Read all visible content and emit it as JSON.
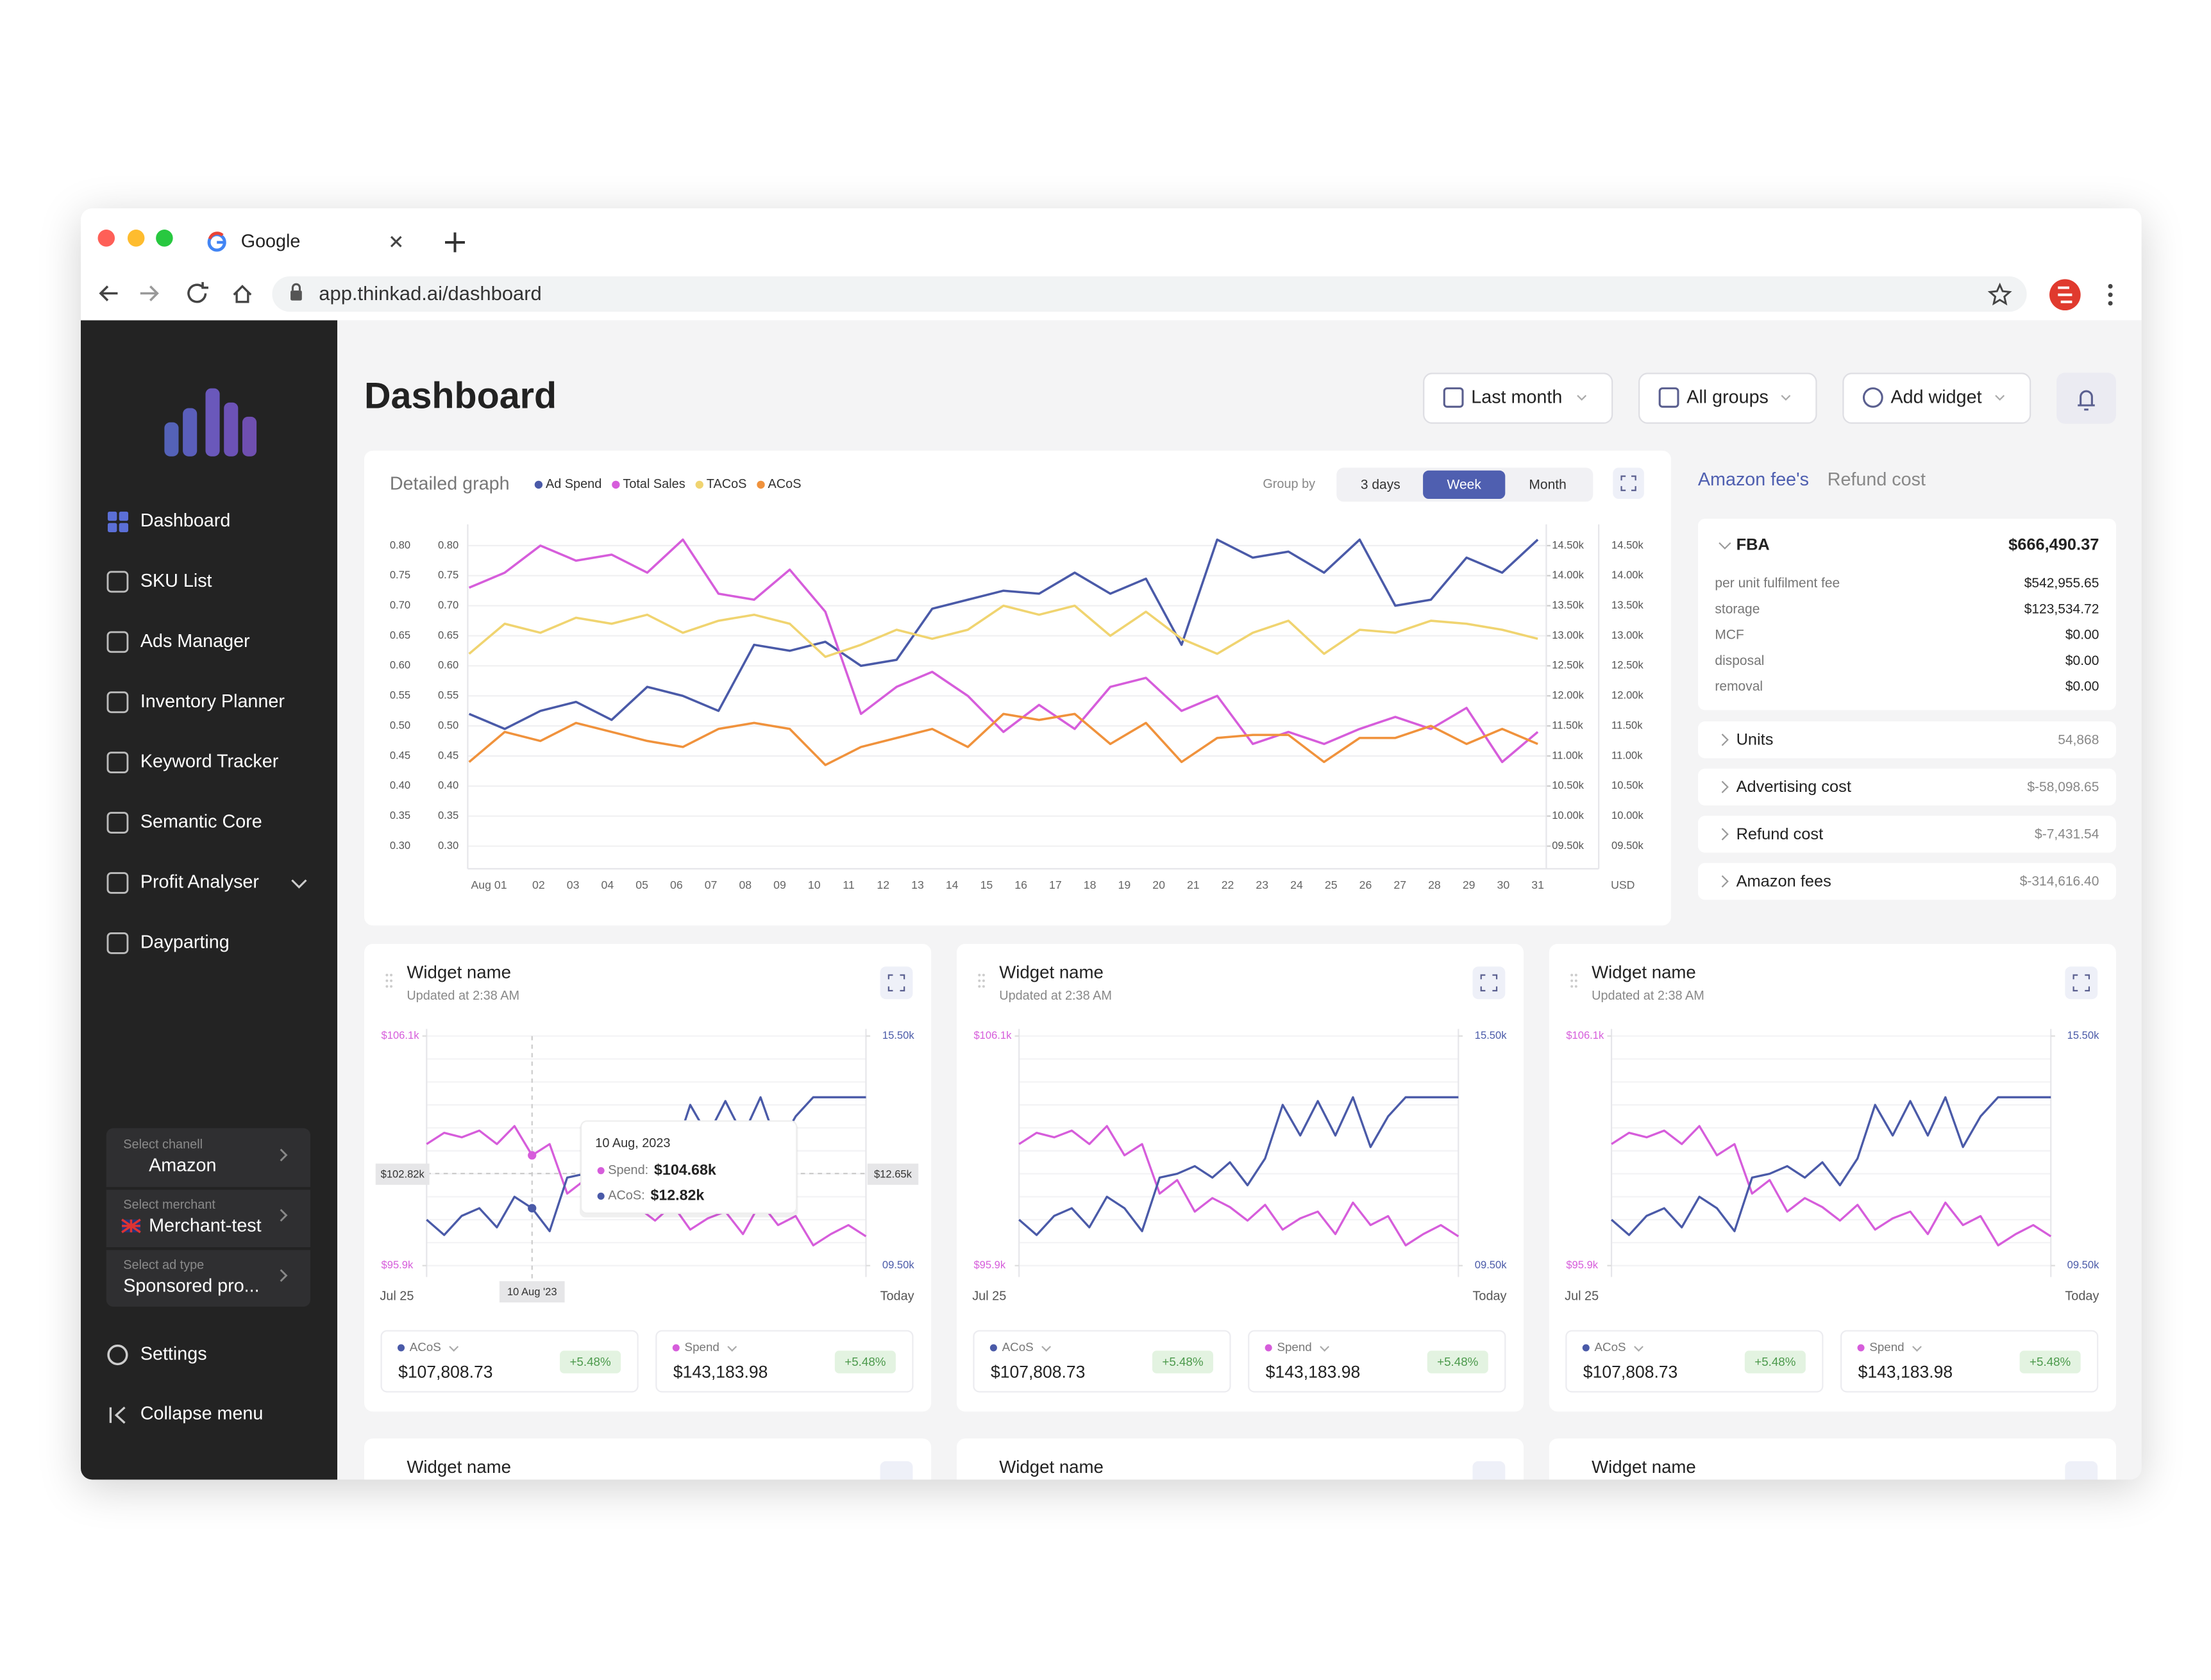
{
  "browser": {
    "tab_title": "Google",
    "url": "app.thinkad.ai/dashboard"
  },
  "sidebar": {
    "nav": [
      "Dashboard",
      "SKU List",
      "Ads Manager",
      "Inventory Planner",
      "Keyword Tracker",
      "Semantic Core",
      "Profit Analyser",
      "Dayparting"
    ],
    "selectors": [
      {
        "caption": "Select chanell",
        "value": "Amazon"
      },
      {
        "caption": "Select merchant",
        "value": "Merchant-test"
      },
      {
        "caption": "Select ad type",
        "value": "Sponsored pro..."
      }
    ],
    "settings": "Settings",
    "collapse": "Collapse menu"
  },
  "header": {
    "title": "Dashboard",
    "buttons": [
      "Last month",
      "All groups",
      "Add widget"
    ]
  },
  "main_chart": {
    "type": "line",
    "title": "Detailed graph",
    "group_by_label": "Group by",
    "group_by_options": [
      "3 days",
      "Week",
      "Month"
    ],
    "group_by_selected": "Week",
    "categories": [
      "Aug 01",
      "02",
      "03",
      "04",
      "05",
      "06",
      "07",
      "08",
      "09",
      "10",
      "11",
      "12",
      "13",
      "14",
      "15",
      "16",
      "17",
      "18",
      "19",
      "20",
      "21",
      "22",
      "23",
      "24",
      "25",
      "26",
      "27",
      "28",
      "29",
      "30",
      "31"
    ],
    "unit_label": "USD",
    "series": [
      {
        "name": "Ad Spend",
        "color": "#4a5aa8",
        "axis": "y2",
        "values": [
          11700,
          11450,
          11750,
          11900,
          11600,
          12150,
          12000,
          11750,
          12850,
          12750,
          12900,
          12500,
          12600,
          13450,
          13600,
          13750,
          13700,
          14050,
          13700,
          13950,
          12850,
          14600,
          14300,
          14400,
          14050,
          14600,
          13500,
          13600,
          14300,
          14050,
          14600
        ]
      },
      {
        "name": "Total Sales",
        "color": "#d65ddb",
        "axis": "y2",
        "values": [
          13800,
          14050,
          14500,
          14250,
          14350,
          14050,
          14600,
          13700,
          13600,
          14100,
          13400,
          11700,
          12150,
          12400,
          12000,
          11400,
          11850,
          11450,
          12150,
          12300,
          11750,
          12000,
          11200,
          11400,
          11200,
          11450,
          11650,
          11450,
          11800,
          10900,
          11400
        ]
      },
      {
        "name": "TACoS",
        "color": "#f0d470",
        "values": [
          0.62,
          0.67,
          0.655,
          0.68,
          0.67,
          0.685,
          0.655,
          0.675,
          0.685,
          0.67,
          0.615,
          0.635,
          0.66,
          0.645,
          0.66,
          0.7,
          0.685,
          0.7,
          0.65,
          0.69,
          0.645,
          0.62,
          0.655,
          0.675,
          0.62,
          0.66,
          0.655,
          0.675,
          0.67,
          0.66,
          0.645
        ]
      },
      {
        "name": "ACoS",
        "color": "#f0923c",
        "values": [
          0.44,
          0.49,
          0.475,
          0.505,
          0.49,
          0.475,
          0.465,
          0.495,
          0.505,
          0.495,
          0.435,
          0.465,
          0.48,
          0.495,
          0.465,
          0.52,
          0.51,
          0.52,
          0.47,
          0.505,
          0.44,
          0.48,
          0.485,
          0.485,
          0.44,
          0.48,
          0.48,
          0.5,
          0.47,
          0.495,
          0.47
        ]
      }
    ],
    "ylim": [
      0.28,
      0.82
    ],
    "yticks": [
      {
        "value": 0.3,
        "label": "0.30"
      },
      {
        "value": 0.35,
        "label": "0.35"
      },
      {
        "value": 0.4,
        "label": "0.40"
      },
      {
        "value": 0.45,
        "label": "0.45"
      },
      {
        "value": 0.5,
        "label": "0.50"
      },
      {
        "value": 0.55,
        "label": "0.55"
      },
      {
        "value": 0.6,
        "label": "0.60"
      },
      {
        "value": 0.65,
        "label": "0.65"
      },
      {
        "value": 0.7,
        "label": "0.70"
      },
      {
        "value": 0.75,
        "label": "0.75"
      },
      {
        "value": 0.8,
        "label": "0.80"
      }
    ],
    "y2lim": [
      9300,
      14700
    ],
    "y2ticks": [
      {
        "value": 9500,
        "label": "09.50k"
      },
      {
        "value": 10000,
        "label": "10.00k"
      },
      {
        "value": 10500,
        "label": "10.50k"
      },
      {
        "value": 11000,
        "label": "11.00k"
      },
      {
        "value": 11500,
        "label": "11.50k"
      },
      {
        "value": 12000,
        "label": "12.00k"
      },
      {
        "value": 12500,
        "label": "12.50k"
      },
      {
        "value": 13000,
        "label": "13.00k"
      },
      {
        "value": 13500,
        "label": "13.50k"
      },
      {
        "value": 14000,
        "label": "14.00k"
      },
      {
        "value": 14500,
        "label": "14.50k"
      }
    ],
    "grid": true
  },
  "fees_panel": {
    "tabs": [
      "Amazon fee's",
      "Refund cost"
    ],
    "selected": "Amazon fee's",
    "fba": {
      "title": "FBA",
      "total": "$666,490.37",
      "rows": [
        {
          "label": "per unit fulfilment fee",
          "value": "$542,955.65"
        },
        {
          "label": "storage",
          "value": "$123,534.72"
        },
        {
          "label": "MCF",
          "value": "$0.00"
        },
        {
          "label": "disposal",
          "value": "$0.00"
        },
        {
          "label": "removal",
          "value": "$0.00"
        }
      ]
    },
    "sections": [
      {
        "label": "Units",
        "value": "54,868"
      },
      {
        "label": "Advertising cost",
        "value": "$-58,098.65"
      },
      {
        "label": "Refund cost",
        "value": "$-7,431.54"
      },
      {
        "label": "Amazon fees",
        "value": "$-314,616.40"
      }
    ]
  },
  "widgets": [
    {
      "title": "Widget name",
      "updated": "Updated at 2:38 AM",
      "chart": {
        "type": "line",
        "x_start": "Jul 25",
        "x_end": "Today",
        "series": [
          {
            "color": "#d65ddb",
            "values": [
              101300,
              101800,
              101600,
              101900,
              101300,
              102100,
              100800,
              101300,
              99100,
              99700,
              98300,
              98900,
              98500,
              97900,
              98600,
              97500,
              98000,
              98300,
              97300,
              98700,
              97700,
              98100,
              96800,
              97300,
              97700,
              97200
            ]
          },
          {
            "color": "#4a5aa8",
            "axis": "y2",
            "values": [
              10700,
              10300,
              10800,
              11000,
              10500,
              11300,
              11000,
              10400,
              11800,
              11900,
              12100,
              11800,
              12200,
              11600,
              12300,
              13700,
              12900,
              13800,
              12900,
              13900,
              12600,
              13400,
              13900,
              13900,
              13900,
              13900
            ]
          }
        ],
        "ylim": [
          95900,
          106100
        ],
        "yticks": [
          {
            "value": 95900,
            "label": "$95.9k"
          },
          {
            "value": 106100,
            "label": "$106.1k"
          }
        ],
        "y2lim": [
          9500,
          15500
        ],
        "y2ticks": [
          {
            "value": 9500,
            "label": "09.50k"
          },
          {
            "value": 15500,
            "label": "15.50k"
          }
        ]
      },
      "tooltip": {
        "date": "10 Aug, 2023",
        "rows": [
          {
            "label": "Spend:",
            "value": "$104.68k"
          },
          {
            "label": "ACoS:",
            "value": "$12.82k"
          }
        ],
        "y_label": "$102.82k",
        "y2_label": "$12.65k",
        "x_label": "10 Aug '23"
      },
      "stats": [
        {
          "name": "ACoS",
          "color": "#4a5aa8",
          "value": "$107,808.73",
          "change": "+5.48%"
        },
        {
          "name": "Spend",
          "color": "#d65ddb",
          "value": "$143,183.98",
          "change": "+5.48%"
        }
      ]
    },
    {
      "title": "Widget name",
      "updated": "Updated at 2:38 AM",
      "chart": {
        "type": "line",
        "x_start": "Jul 25",
        "x_end": "Today",
        "series": [
          {
            "color": "#d65ddb",
            "values": [
              101300,
              101800,
              101600,
              101900,
              101300,
              102100,
              100800,
              101300,
              99100,
              99700,
              98300,
              98900,
              98500,
              97900,
              98600,
              97500,
              98000,
              98300,
              97300,
              98700,
              97700,
              98100,
              96800,
              97300,
              97700,
              97200
            ]
          },
          {
            "color": "#4a5aa8",
            "axis": "y2",
            "values": [
              10700,
              10300,
              10800,
              11000,
              10500,
              11300,
              11000,
              10400,
              11800,
              11900,
              12100,
              11800,
              12200,
              11600,
              12300,
              13700,
              12900,
              13800,
              12900,
              13900,
              12600,
              13400,
              13900,
              13900,
              13900,
              13900
            ]
          }
        ],
        "ylim": [
          95900,
          106100
        ],
        "yticks": [
          {
            "value": 95900,
            "label": "$95.9k"
          },
          {
            "value": 106100,
            "label": "$106.1k"
          }
        ],
        "y2lim": [
          9500,
          15500
        ],
        "y2ticks": [
          {
            "value": 9500,
            "label": "09.50k"
          },
          {
            "value": 15500,
            "label": "15.50k"
          }
        ]
      },
      "stats": [
        {
          "name": "ACoS",
          "color": "#4a5aa8",
          "value": "$107,808.73",
          "change": "+5.48%"
        },
        {
          "name": "Spend",
          "color": "#d65ddb",
          "value": "$143,183.98",
          "change": "+5.48%"
        }
      ]
    },
    {
      "title": "Widget name",
      "updated": "Updated at 2:38 AM",
      "chart": {
        "type": "line",
        "x_start": "Jul 25",
        "x_end": "Today",
        "series": [
          {
            "color": "#d65ddb",
            "values": [
              101300,
              101800,
              101600,
              101900,
              101300,
              102100,
              100800,
              101300,
              99100,
              99700,
              98300,
              98900,
              98500,
              97900,
              98600,
              97500,
              98000,
              98300,
              97300,
              98700,
              97700,
              98100,
              96800,
              97300,
              97700,
              97200
            ]
          },
          {
            "color": "#4a5aa8",
            "axis": "y2",
            "values": [
              10700,
              10300,
              10800,
              11000,
              10500,
              11300,
              11000,
              10400,
              11800,
              11900,
              12100,
              11800,
              12200,
              11600,
              12300,
              13700,
              12900,
              13800,
              12900,
              13900,
              12600,
              13400,
              13900,
              13900,
              13900,
              13900
            ]
          }
        ],
        "ylim": [
          95900,
          106100
        ],
        "yticks": [
          {
            "value": 95900,
            "label": "$95.9k"
          },
          {
            "value": 106100,
            "label": "$106.1k"
          }
        ],
        "y2lim": [
          9500,
          15500
        ],
        "y2ticks": [
          {
            "value": 9500,
            "label": "09.50k"
          },
          {
            "value": 15500,
            "label": "15.50k"
          }
        ]
      },
      "stats": [
        {
          "name": "ACoS",
          "color": "#4a5aa8",
          "value": "$107,808.73",
          "change": "+5.48%"
        },
        {
          "name": "Spend",
          "color": "#d65ddb",
          "value": "$143,183.98",
          "change": "+5.48%"
        }
      ]
    }
  ],
  "widgets_row2": [
    {
      "title": "Widget name"
    },
    {
      "title": "Widget name"
    },
    {
      "title": "Widget name"
    }
  ]
}
